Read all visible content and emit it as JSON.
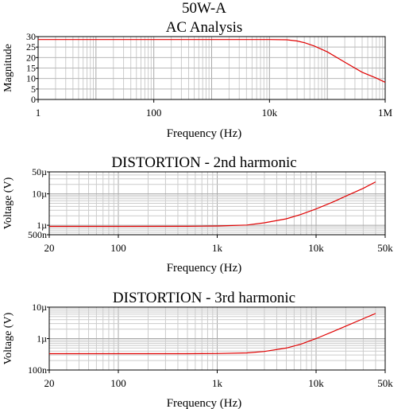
{
  "chart_data": [
    {
      "type": "line",
      "title": "50W-A",
      "subtitle": "AC Analysis",
      "xlabel": "Frequency (Hz)",
      "ylabel": "Magnitude",
      "x_scale": "log",
      "y_scale": "linear",
      "xlim": [
        1,
        1000000
      ],
      "ylim": [
        0,
        30
      ],
      "x_ticks": [
        {
          "value": 1,
          "label": "1"
        },
        {
          "value": 100,
          "label": "100"
        },
        {
          "value": 10000,
          "label": "10k"
        },
        {
          "value": 1000000,
          "label": "1M"
        }
      ],
      "y_ticks": [
        {
          "value": 0,
          "label": "0"
        },
        {
          "value": 5,
          "label": "5"
        },
        {
          "value": 10,
          "label": "10"
        },
        {
          "value": 15,
          "label": "15"
        },
        {
          "value": 20,
          "label": "20"
        },
        {
          "value": 25,
          "label": "25"
        },
        {
          "value": 30,
          "label": "30"
        }
      ],
      "grid": true,
      "series": [
        {
          "color": "#e00000",
          "x": [
            1,
            1000,
            10000,
            20000,
            30000,
            40000,
            60000,
            100000,
            200000,
            400000,
            700000,
            1000000
          ],
          "y": [
            28.6,
            28.6,
            28.6,
            28.5,
            27.9,
            27.1,
            25.5,
            22.7,
            17.8,
            13.0,
            10.2,
            8.2
          ]
        }
      ]
    },
    {
      "type": "line",
      "title": "DISTORTION - 2nd harmonic",
      "xlabel": "Frequency (Hz)",
      "ylabel": "Voltage (V)",
      "x_scale": "log",
      "y_scale": "log",
      "xlim": [
        20,
        50000
      ],
      "ylim": [
        5e-07,
        5e-05
      ],
      "x_ticks": [
        {
          "value": 20,
          "label": "20"
        },
        {
          "value": 100,
          "label": "100"
        },
        {
          "value": 1000,
          "label": "1k"
        },
        {
          "value": 10000,
          "label": "10k"
        },
        {
          "value": 50000,
          "label": "50k"
        }
      ],
      "y_ticks": [
        {
          "value": 5e-07,
          "label": "500n"
        },
        {
          "value": 1e-06,
          "label": "1µ"
        },
        {
          "value": 1e-05,
          "label": "10µ"
        },
        {
          "value": 5e-05,
          "label": "50µ"
        }
      ],
      "grid": true,
      "series": [
        {
          "color": "#e00000",
          "x": [
            20,
            100,
            500,
            1000,
            2000,
            3000,
            5000,
            7000,
            10000,
            15000,
            20000,
            30000,
            40000
          ],
          "y": [
            9.2e-07,
            9.2e-07,
            9.3e-07,
            9.5e-07,
            1.02e-06,
            1.2e-06,
            1.6e-06,
            2.2e-06,
            3.3e-06,
            5.6e-06,
            8.5e-06,
            1.5e-05,
            2.4e-05
          ]
        }
      ]
    },
    {
      "type": "line",
      "title": "DISTORTION - 3rd harmonic",
      "xlabel": "Frequency (Hz)",
      "ylabel": "Voltage (V)",
      "x_scale": "log",
      "y_scale": "log",
      "xlim": [
        20,
        50000
      ],
      "ylim": [
        1e-07,
        1e-05
      ],
      "x_ticks": [
        {
          "value": 20,
          "label": "20"
        },
        {
          "value": 100,
          "label": "100"
        },
        {
          "value": 1000,
          "label": "1k"
        },
        {
          "value": 10000,
          "label": "10k"
        },
        {
          "value": 50000,
          "label": "50k"
        }
      ],
      "y_ticks": [
        {
          "value": 1e-07,
          "label": "100n"
        },
        {
          "value": 1e-06,
          "label": "1µ"
        },
        {
          "value": 1e-05,
          "label": "10µ"
        }
      ],
      "grid": true,
      "series": [
        {
          "color": "#e00000",
          "x": [
            20,
            100,
            500,
            1000,
            2000,
            3000,
            5000,
            7000,
            10000,
            15000,
            20000,
            30000,
            40000
          ],
          "y": [
            3.3e-07,
            3.3e-07,
            3.3e-07,
            3.35e-07,
            3.5e-07,
            3.9e-07,
            5e-07,
            6.6e-07,
            1e-06,
            1.7e-06,
            2.5e-06,
            4.3e-06,
            6.3e-06
          ]
        }
      ]
    }
  ]
}
